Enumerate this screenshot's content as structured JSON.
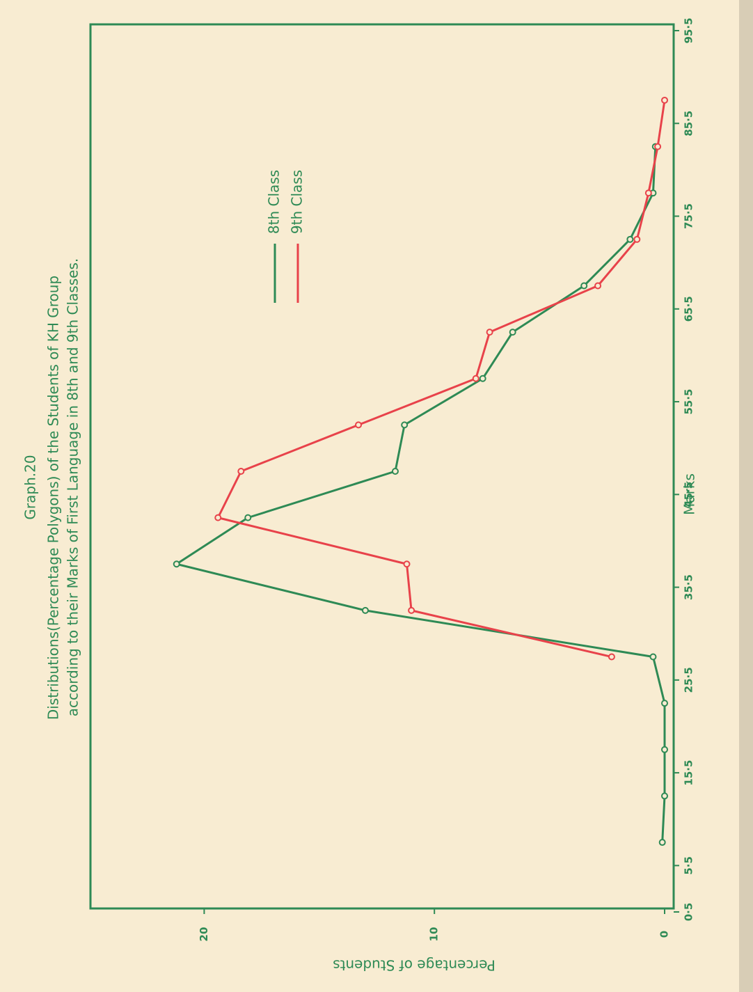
{
  "chart_data": {
    "type": "line",
    "title": "Graph.20",
    "subtitle": [
      "Distributions(Percentage Polygons) of the Students of KH Group",
      "according to their Marks of First Language in 8th and 9th Classes."
    ],
    "x_label": "Marks",
    "y_label": "Percentage of Students",
    "x": [
      8,
      13,
      18,
      23,
      28,
      33,
      38,
      43,
      48,
      53,
      58,
      63,
      68,
      73,
      78,
      83,
      88
    ],
    "series": [
      {
        "name": "8th Class",
        "color": "#2e8a55",
        "values": [
          0.1,
          0,
          0,
          0,
          0.5,
          13.0,
          21.2,
          18.1,
          11.7,
          11.3,
          7.9,
          6.6,
          3.5,
          1.5,
          0.5,
          0.4,
          null
        ]
      },
      {
        "name": "9th Class",
        "color": "#e8424a",
        "values": [
          null,
          null,
          null,
          null,
          2.3,
          11.0,
          11.2,
          19.4,
          18.4,
          13.3,
          8.2,
          7.6,
          2.9,
          1.2,
          0.7,
          0.3,
          0
        ]
      }
    ],
    "xlim": [
      0.5,
      95.5
    ],
    "xticks": [
      {
        "value": 0.5,
        "label": "0·5"
      },
      {
        "value": 5.5,
        "label": "5·5"
      },
      {
        "value": 15.5,
        "label": "15·5"
      },
      {
        "value": 25.5,
        "label": "25·5"
      },
      {
        "value": 35.5,
        "label": "35·5"
      },
      {
        "value": 45.5,
        "label": "45·5"
      },
      {
        "value": 55.5,
        "label": "55·5"
      },
      {
        "value": 65.5,
        "label": "65·5"
      },
      {
        "value": 75.5,
        "label": "75·5"
      },
      {
        "value": 85.5,
        "label": "85·5"
      },
      {
        "value": 95.5,
        "label": "95·5"
      }
    ],
    "ylim": [
      0,
      25
    ],
    "yticks": [
      0,
      10,
      20
    ],
    "grid": false
  }
}
